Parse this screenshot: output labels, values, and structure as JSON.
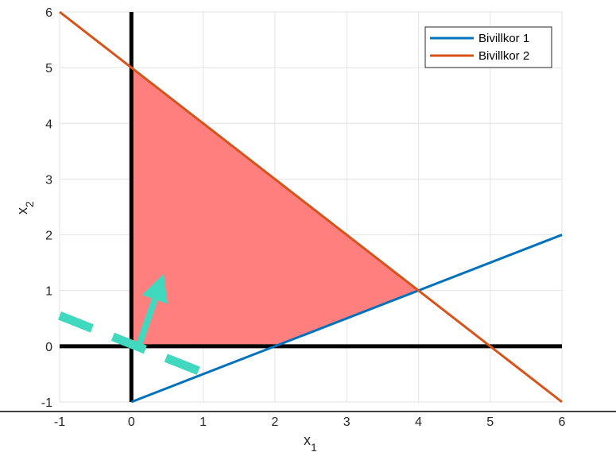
{
  "chart_data": {
    "type": "line",
    "xlim": [
      -1,
      6
    ],
    "ylim": [
      -1,
      6
    ],
    "x_ticks": [
      -1,
      0,
      1,
      2,
      3,
      4,
      5,
      6
    ],
    "y_ticks": [
      -1,
      0,
      1,
      2,
      3,
      4,
      5,
      6
    ],
    "xlabel": "x",
    "xlabel_subscript": "1",
    "ylabel": "x",
    "ylabel_subscript": "2",
    "grid": true,
    "legend_position": "top-right",
    "series": [
      {
        "name": "Bivillkor 1",
        "color": "#0072BD",
        "x": [
          0,
          6
        ],
        "y": [
          -1,
          2
        ]
      },
      {
        "name": "Bivillkor 2",
        "color": "#D95319",
        "x": [
          -1,
          6
        ],
        "y": [
          6,
          -1
        ]
      }
    ],
    "axes_lines": {
      "color": "#000000",
      "horizontal_y": 0,
      "vertical_x": 0
    },
    "feasible_region": {
      "color": "#FF7F7F",
      "vertices": [
        [
          0,
          0
        ],
        [
          2,
          0
        ],
        [
          4,
          1
        ],
        [
          0,
          5
        ]
      ]
    },
    "objective_level_line": {
      "color": "#40D9C0",
      "x": [
        -1,
        1.05
      ],
      "y": [
        0.55,
        -0.5
      ]
    },
    "gradient_arrow": {
      "color": "#40D9C0",
      "from": [
        0.1,
        0
      ],
      "to": [
        0.45,
        1.3
      ]
    }
  }
}
